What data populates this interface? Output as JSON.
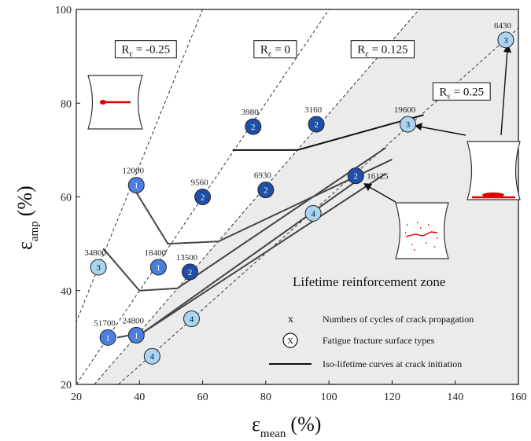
{
  "chart_data": {
    "type": "scatter",
    "xlabel_main": "ε",
    "xlabel_sub": "mean",
    "xlabel_unit": "(%)",
    "ylabel_main": "ε",
    "ylabel_sub": "amp",
    "ylabel_unit": "(%)",
    "xlim": [
      20,
      160
    ],
    "ylim": [
      20,
      100
    ],
    "xticks": [
      20,
      40,
      60,
      80,
      100,
      120,
      140,
      160
    ],
    "yticks": [
      20,
      40,
      60,
      80,
      100
    ],
    "grid": false,
    "ratio_lines": [
      {
        "label": "R",
        "sub": "ε",
        "value": " = -0.25",
        "r": -0.25,
        "label_x": 42,
        "label_y": 91.5
      },
      {
        "label": "R",
        "sub": "ε",
        "value": " = 0",
        "r": 0,
        "label_x": 83,
        "label_y": 91.5
      },
      {
        "label": "R",
        "sub": "ε",
        "value": " = 0.125",
        "r": 0.125,
        "label_x": 117,
        "label_y": 91.5
      },
      {
        "label": "R",
        "sub": "ε",
        "value": " = 0.25",
        "r": 0.25,
        "label_x": 142,
        "label_y": 82.5
      }
    ],
    "zone_label": "Lifetime reinforcement zone",
    "points": [
      {
        "x": 39,
        "y": 62.5,
        "type": "1",
        "cycles": "12000"
      },
      {
        "x": 60,
        "y": 60,
        "type": "2",
        "cycles": "9560"
      },
      {
        "x": 80,
        "y": 61.5,
        "type": "2",
        "cycles": "6930"
      },
      {
        "x": 76,
        "y": 75,
        "type": "2",
        "cycles": "3980"
      },
      {
        "x": 96,
        "y": 75.5,
        "type": "2",
        "cycles": "3160"
      },
      {
        "x": 125,
        "y": 75.5,
        "type": "3",
        "cycles": "19600"
      },
      {
        "x": 156,
        "y": 93.5,
        "type": "3",
        "cycles": "6430"
      },
      {
        "x": 108.5,
        "y": 64.5,
        "type": "2",
        "cycles": "16125"
      },
      {
        "x": 95,
        "y": 56.5,
        "type": "4",
        "cycles": ""
      },
      {
        "x": 27,
        "y": 45,
        "type": "3",
        "cycles": "34800"
      },
      {
        "x": 46,
        "y": 45,
        "type": "1",
        "cycles": "18400"
      },
      {
        "x": 56,
        "y": 44,
        "type": "2",
        "cycles": "13500"
      },
      {
        "x": 30,
        "y": 30,
        "type": "1",
        "cycles": "51700"
      },
      {
        "x": 39,
        "y": 30.5,
        "type": "1",
        "cycles": "24800"
      },
      {
        "x": 56.5,
        "y": 34,
        "type": "4",
        "cycles": ""
      },
      {
        "x": 44,
        "y": 26,
        "type": "4",
        "cycles": ""
      }
    ],
    "iso_curves": [
      [
        [
          69.5,
          70
        ],
        [
          90,
          70
        ],
        [
          130,
          77.5
        ]
      ],
      [
        [
          38.5,
          61.5
        ],
        [
          49,
          50
        ],
        [
          65,
          50.5
        ],
        [
          120,
          68
        ]
      ],
      [
        [
          28.5,
          49
        ],
        [
          40,
          40
        ],
        [
          52,
          40.5
        ],
        [
          118,
          70.5
        ]
      ],
      [
        [
          33,
          30
        ],
        [
          41,
          31
        ],
        [
          118,
          65
        ]
      ],
      [
        [
          41,
          31
        ],
        [
          110,
          64
        ]
      ]
    ],
    "legend": [
      {
        "symbol": "x",
        "text": "Numbers of cycles of crack propagation"
      },
      {
        "symbol": "X",
        "text": "Fatigue fracture surface types"
      },
      {
        "symbol": "line",
        "text": "Iso-lifetime curves at crack initiation"
      }
    ],
    "type_colors": {
      "1": "#4a7fe0",
      "2": "#1f4fa8",
      "3": "#a9d4f2",
      "4": "#a9d4f2"
    }
  }
}
